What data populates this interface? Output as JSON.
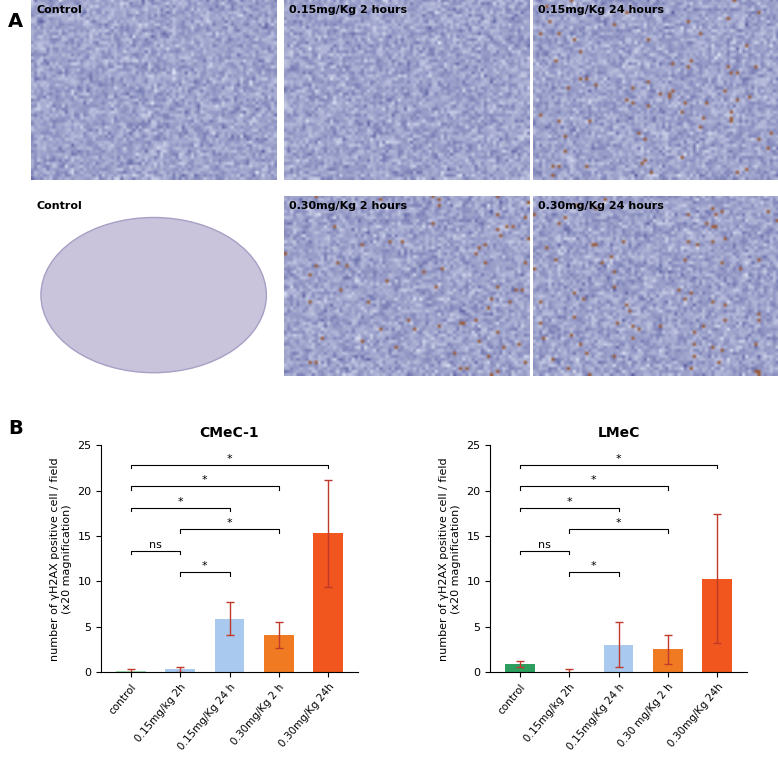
{
  "panel_a": {
    "label": "A",
    "rows": [
      [
        "Control",
        "0.15mg/Kg 2 hours",
        "0.15mg/Kg 24 hours"
      ],
      [
        "Control",
        "0.30mg/Kg 2 hours",
        "0.30mg/Kg 24 hours"
      ]
    ]
  },
  "panel_b": {
    "label": "B"
  },
  "chart_data": [
    {
      "type": "bar",
      "title": "CMeC-1",
      "y_label": "number of γH2AX positive cell / field\n(x20 magnification)",
      "categories": [
        "control",
        "0.15mg/kg 2h",
        "0.15mg/Kg 24 h",
        "0.30mg/Kg 2 h",
        "0.30mg/Kg 24h"
      ],
      "values": [
        0.1,
        0.3,
        5.9,
        4.1,
        15.3
      ],
      "errors": [
        0.2,
        0.3,
        1.8,
        1.4,
        5.9
      ],
      "colors": [
        "#9fd8ae",
        "#a9c9ee",
        "#a9c9ee",
        "#f07a22",
        "#f0561e"
      ],
      "ylim": [
        0,
        25
      ],
      "yticks": [
        0,
        5,
        10,
        15,
        20,
        25
      ],
      "significance": [
        {
          "from": "0.15mg/kg 2h",
          "to": "0.15mg/Kg 24 h",
          "label": "*"
        },
        {
          "from": "control",
          "to": "0.15mg/kg 2h",
          "label": "ns"
        },
        {
          "from": "0.15mg/kg 2h",
          "to": "0.30mg/Kg 2 h",
          "label": "*"
        },
        {
          "from": "control",
          "to": "0.15mg/Kg 24 h",
          "label": "*"
        },
        {
          "from": "control",
          "to": "0.30mg/Kg 2 h",
          "label": "*"
        },
        {
          "from": "control",
          "to": "0.30mg/Kg 24h",
          "label": "*"
        }
      ]
    },
    {
      "type": "bar",
      "title": "LMeC",
      "y_label": "number of γH2AX positive cell / field\n(x20 magnification)",
      "categories": [
        "control",
        "0.15mg/kg 2h",
        "0.15mg/Kg 24 h",
        "0.30 mg/Kg 2 h",
        "0.30mg/Kg 24h"
      ],
      "values": [
        0.9,
        0.05,
        3.0,
        2.5,
        10.3
      ],
      "errors": [
        0.3,
        0.3,
        2.5,
        1.6,
        7.1
      ],
      "colors": [
        "#2e9e5e",
        "#a9c9ee",
        "#a9c9ee",
        "#f07a22",
        "#f0561e"
      ],
      "ylim": [
        0,
        25
      ],
      "yticks": [
        0,
        5,
        10,
        15,
        20,
        25
      ],
      "significance": [
        {
          "from": "0.15mg/kg 2h",
          "to": "0.15mg/Kg 24 h",
          "label": "*"
        },
        {
          "from": "control",
          "to": "0.15mg/kg 2h",
          "label": "ns"
        },
        {
          "from": "0.15mg/kg 2h",
          "to": "0.30 mg/Kg 2 h",
          "label": "*"
        },
        {
          "from": "control",
          "to": "0.15mg/Kg 24 h",
          "label": "*"
        },
        {
          "from": "control",
          "to": "0.30 mg/Kg 2 h",
          "label": "*"
        },
        {
          "from": "control",
          "to": "0.30mg/Kg 24h",
          "label": "*"
        }
      ]
    }
  ]
}
